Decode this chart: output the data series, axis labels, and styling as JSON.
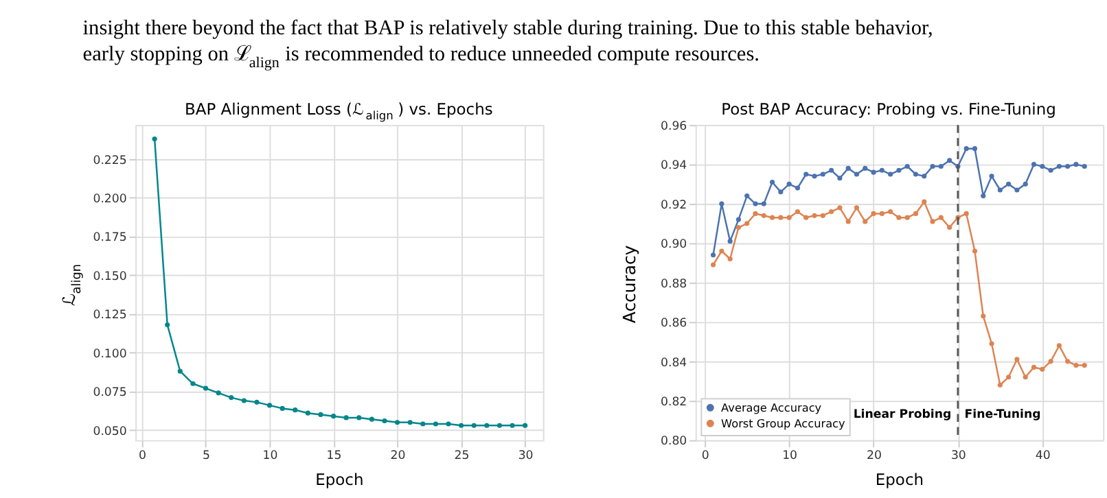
{
  "chart_data": [
    {
      "type": "other",
      "annotations": [
        "insight there beyond the fact that BAP is relatively stable during training. Due to this stable behavior,",
        "early stopping on ℒ$_{align}$ is recommended to reduce unneeded compute resources."
      ]
    },
    {
      "type": "line",
      "title": "BAP Alignment Loss (ℒ$_{align}$) vs. Epochs",
      "xlabel": "Epoch",
      "ylabel": "ℒ$_{align}$",
      "x": [
        1,
        2,
        3,
        4,
        5,
        6,
        7,
        8,
        9,
        10,
        11,
        12,
        13,
        14,
        15,
        16,
        17,
        18,
        19,
        20,
        21,
        22,
        23,
        24,
        25,
        26,
        27,
        28,
        29,
        30
      ],
      "series": [
        {
          "color": "#00868b",
          "values": [
            0.238,
            0.118,
            0.088,
            0.08,
            0.077,
            0.074,
            0.071,
            0.069,
            0.068,
            0.066,
            0.064,
            0.063,
            0.061,
            0.06,
            0.059,
            0.058,
            0.058,
            0.057,
            0.056,
            0.055,
            0.055,
            0.054,
            0.054,
            0.054,
            0.053,
            0.053,
            0.053,
            0.053,
            0.053,
            0.053
          ]
        }
      ],
      "xlim": [
        -0.5,
        31.4
      ],
      "ylim": [
        0.0435,
        0.247
      ],
      "xticks": [
        0,
        5,
        10,
        15,
        20,
        25,
        30
      ],
      "yticks": [
        {
          "value": 0.05,
          "label": "0.050"
        },
        0.075,
        {
          "value": 0.1,
          "label": "0.100"
        },
        0.125,
        {
          "value": 0.15,
          "label": "0.150"
        },
        0.175,
        {
          "value": 0.2,
          "label": "0.200"
        },
        0.225
      ],
      "grid": true,
      "marker": "circle",
      "line_style": "solid"
    },
    {
      "type": "line",
      "title": "Post BAP Accuracy: Probing vs. Fine-Tuning",
      "xlabel": "Epoch",
      "ylabel": "Accuracy",
      "x": [
        1,
        2,
        3,
        4,
        5,
        6,
        7,
        8,
        9,
        10,
        11,
        12,
        13,
        14,
        15,
        16,
        17,
        18,
        19,
        20,
        21,
        22,
        23,
        24,
        25,
        26,
        27,
        28,
        29,
        30,
        31,
        32,
        33,
        34,
        35,
        36,
        37,
        38,
        39,
        40,
        41,
        42,
        43,
        44,
        45
      ],
      "series": [
        {
          "name": "Average Accuracy",
          "color": "#4c72b0",
          "values": [
            0.894,
            0.92,
            0.901,
            0.912,
            0.924,
            0.92,
            0.92,
            0.931,
            0.926,
            0.93,
            0.928,
            0.935,
            0.934,
            0.935,
            0.937,
            0.933,
            0.938,
            0.935,
            0.938,
            0.936,
            0.937,
            0.935,
            0.937,
            0.939,
            0.935,
            0.934,
            0.939,
            0.939,
            0.942,
            0.939,
            0.948,
            0.948,
            0.924,
            0.934,
            0.927,
            0.93,
            0.927,
            0.93,
            0.94,
            0.939,
            0.937,
            0.939,
            0.939,
            0.94,
            0.939
          ]
        },
        {
          "name": "Worst Group Accuracy",
          "color": "#dd8452",
          "values": [
            0.889,
            0.896,
            0.892,
            0.908,
            0.91,
            0.915,
            0.914,
            0.913,
            0.913,
            0.913,
            0.916,
            0.913,
            0.914,
            0.914,
            0.916,
            0.918,
            0.911,
            0.918,
            0.911,
            0.915,
            0.915,
            0.916,
            0.913,
            0.913,
            0.915,
            0.921,
            0.911,
            0.913,
            0.908,
            0.913,
            0.915,
            0.896,
            0.863,
            0.849,
            0.828,
            0.832,
            0.841,
            0.832,
            0.837,
            0.836,
            0.84,
            0.848,
            0.84,
            0.838,
            0.838
          ]
        }
      ],
      "xlim": [
        -1.1,
        47.2
      ],
      "ylim": [
        0.8,
        0.96
      ],
      "xticks": [
        0,
        10,
        20,
        30,
        40
      ],
      "yticks": [
        {
          "value": 0.8,
          "label": "0.80"
        },
        0.82,
        0.84,
        0.86,
        0.88,
        {
          "value": 0.9,
          "label": "0.90"
        },
        0.92,
        0.94,
        0.96
      ],
      "ref_lines": [
        {
          "axis": "x",
          "value": 30,
          "color": "#555555",
          "line_style": "dashed"
        }
      ],
      "annotations": [
        "Linear Probing",
        "Fine-Tuning"
      ],
      "grid": true,
      "legend": "bottom left",
      "marker": "circle",
      "line_style": "solid"
    }
  ]
}
